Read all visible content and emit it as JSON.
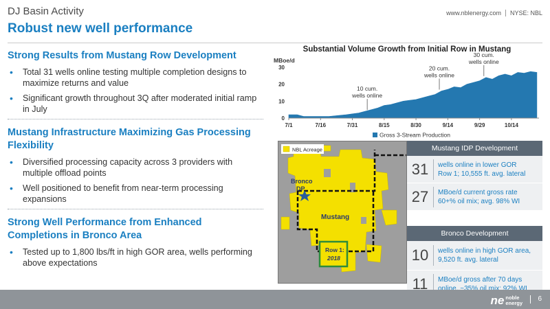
{
  "header": {
    "kicker": "DJ Basin Activity",
    "title": "Robust new well performance",
    "website": "www.nblenergy.com",
    "ticker": "NYSE: NBL"
  },
  "sections": [
    {
      "heading": "Strong Results from Mustang Row Development",
      "bullets": [
        "Total 31 wells online testing multiple completion designs to maximize returns and value",
        "Significant growth throughout 3Q after moderated initial ramp in July"
      ]
    },
    {
      "heading": "Mustang Infrastructure Maximizing Gas Processing Flexibility",
      "bullets": [
        "Diversified processing capacity across 3 providers with multiple offload points",
        "Well positioned to benefit from near-term processing expansions"
      ]
    },
    {
      "heading": "Strong Well Performance from Enhanced Completions in Bronco Area",
      "bullets": [
        "Tested up to 1,800 lbs/ft in high GOR area, wells performing above expectations"
      ]
    }
  ],
  "chart_data": {
    "type": "area",
    "title": "Substantial Volume Growth from Initial Row in Mustang",
    "ylabel": "MBoe/d",
    "ylim": [
      0,
      30
    ],
    "yticks": [
      0,
      10,
      20,
      30
    ],
    "x_tick_labels": [
      "7/1",
      "7/16",
      "7/31",
      "8/15",
      "8/30",
      "9/14",
      "9/29",
      "10/14"
    ],
    "series": [
      {
        "name": "Gross 3-Stream Production",
        "color": "#2478b0",
        "points": [
          [
            "7/1",
            2
          ],
          [
            "7/5",
            2
          ],
          [
            "7/8",
            1
          ],
          [
            "7/12",
            1
          ],
          [
            "7/16",
            1
          ],
          [
            "7/20",
            1
          ],
          [
            "7/24",
            1.5
          ],
          [
            "7/28",
            2
          ],
          [
            "7/31",
            2.5
          ],
          [
            "8/3",
            3
          ],
          [
            "8/6",
            4
          ],
          [
            "8/9",
            5
          ],
          [
            "8/12",
            6
          ],
          [
            "8/15",
            7.5
          ],
          [
            "8/18",
            8
          ],
          [
            "8/21",
            9
          ],
          [
            "8/24",
            10
          ],
          [
            "8/27",
            10.5
          ],
          [
            "8/30",
            11
          ],
          [
            "9/2",
            12
          ],
          [
            "9/5",
            13
          ],
          [
            "9/8",
            14
          ],
          [
            "9/11",
            16
          ],
          [
            "9/14",
            17
          ],
          [
            "9/17",
            18.5
          ],
          [
            "9/20",
            18
          ],
          [
            "9/23",
            20
          ],
          [
            "9/26",
            21
          ],
          [
            "9/29",
            22
          ],
          [
            "10/2",
            24
          ],
          [
            "10/5",
            23
          ],
          [
            "10/8",
            25
          ],
          [
            "10/11",
            26
          ],
          [
            "10/14",
            25
          ],
          [
            "10/17",
            27
          ],
          [
            "10/20",
            26.5
          ],
          [
            "10/23",
            27.5
          ],
          [
            "10/26",
            27
          ]
        ]
      }
    ],
    "annotations": [
      {
        "x": "8/7",
        "text": [
          "10 cum.",
          "wells online"
        ]
      },
      {
        "x": "9/10",
        "text": [
          "20 cum.",
          "wells online"
        ]
      },
      {
        "x": "10/1",
        "text": [
          "30 cum.",
          "wells online"
        ]
      }
    ],
    "legend_position": "bottom-center"
  },
  "map": {
    "legend": "NBL Acreage",
    "labels": {
      "bronco": [
        "Bronco",
        "DP"
      ],
      "mustang": "Mustang",
      "row": [
        "Row 1:",
        "2018"
      ]
    },
    "colors": {
      "acreage": "#f4e000",
      "background": "#9a9a9a",
      "row_box": "#2e8b3a"
    }
  },
  "panel": {
    "mustang_heading": "Mustang IDP Development",
    "mustang_stats": [
      {
        "value": "31",
        "text": [
          "wells online in lower GOR",
          "Row 1; 10,555 ft. avg. lateral"
        ]
      },
      {
        "value": "27",
        "text": [
          "MBoe/d current gross rate",
          "60+% oil mix;  avg. 98% WI"
        ]
      }
    ],
    "bronco_heading": "Bronco Development",
    "bronco_stats": [
      {
        "value": "10",
        "text": [
          "wells online in high GOR area,",
          "9,520 ft. avg. lateral"
        ]
      },
      {
        "value": "11",
        "text": [
          "MBoe/d gross after 70 days",
          "online, ~35% oil mix; 92% WI"
        ]
      }
    ]
  },
  "footer": {
    "logo_mark": "ne",
    "logo_words": [
      "noble",
      "energy"
    ],
    "page_number": "6"
  }
}
